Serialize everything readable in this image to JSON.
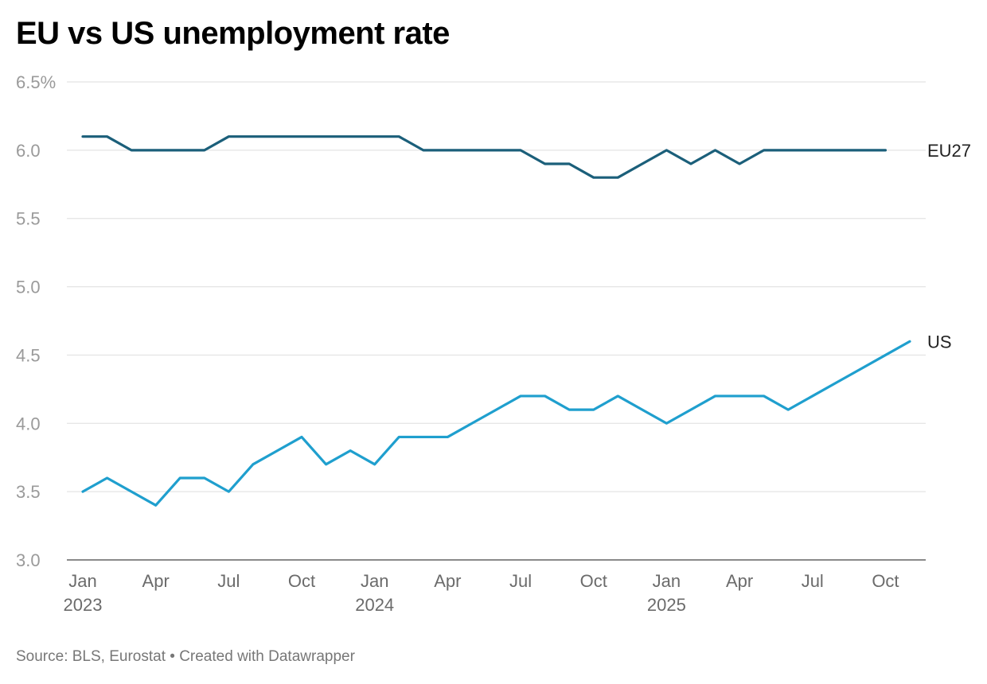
{
  "chart_data": {
    "type": "line",
    "title": "EU vs US unemployment rate",
    "source": "Source: BLS, Eurostat • Created with Datawrapper",
    "xlabel": "",
    "ylabel": "",
    "ylim": [
      3.0,
      6.5
    ],
    "y_ticks": [
      {
        "value": 3.0,
        "label": "3.0"
      },
      {
        "value": 3.5,
        "label": "3.5"
      },
      {
        "value": 4.0,
        "label": "4.0"
      },
      {
        "value": 4.5,
        "label": "4.5"
      },
      {
        "value": 5.0,
        "label": "5.0"
      },
      {
        "value": 5.5,
        "label": "5.5"
      },
      {
        "value": 6.0,
        "label": "6.0"
      },
      {
        "value": 6.5,
        "label": "6.5%"
      }
    ],
    "x_ticks": [
      {
        "index": 0,
        "label": "Jan",
        "sublabel": "2023"
      },
      {
        "index": 3,
        "label": "Apr",
        "sublabel": ""
      },
      {
        "index": 6,
        "label": "Jul",
        "sublabel": ""
      },
      {
        "index": 9,
        "label": "Oct",
        "sublabel": ""
      },
      {
        "index": 12,
        "label": "Jan",
        "sublabel": "2024"
      },
      {
        "index": 15,
        "label": "Apr",
        "sublabel": ""
      },
      {
        "index": 18,
        "label": "Jul",
        "sublabel": ""
      },
      {
        "index": 21,
        "label": "Oct",
        "sublabel": ""
      },
      {
        "index": 24,
        "label": "Jan",
        "sublabel": "2025"
      },
      {
        "index": 27,
        "label": "Apr",
        "sublabel": ""
      },
      {
        "index": 30,
        "label": "Jul",
        "sublabel": ""
      },
      {
        "index": 33,
        "label": "Oct",
        "sublabel": ""
      }
    ],
    "x_count": 35,
    "series": [
      {
        "name": "EU27",
        "color": "#1b5f7a",
        "values": [
          6.1,
          6.1,
          6.0,
          6.0,
          6.0,
          6.0,
          6.1,
          6.1,
          6.1,
          6.1,
          6.1,
          6.1,
          6.1,
          6.1,
          6.0,
          6.0,
          6.0,
          6.0,
          6.0,
          5.9,
          5.9,
          5.8,
          5.8,
          5.9,
          6.0,
          5.9,
          6.0,
          5.9,
          6.0,
          6.0,
          6.0,
          6.0,
          6.0,
          6.0
        ]
      },
      {
        "name": "US",
        "color": "#1f9fce",
        "values": [
          3.5,
          3.6,
          3.5,
          3.4,
          3.6,
          3.6,
          3.5,
          3.7,
          3.8,
          3.9,
          3.7,
          3.8,
          3.7,
          3.9,
          3.9,
          3.9,
          4.0,
          4.1,
          4.2,
          4.2,
          4.1,
          4.1,
          4.2,
          4.1,
          4.0,
          4.1,
          4.2,
          4.2,
          4.2,
          4.1,
          4.2,
          4.3,
          4.4,
          4.5,
          4.6
        ]
      }
    ],
    "grid": true,
    "legend": "inline-right"
  }
}
